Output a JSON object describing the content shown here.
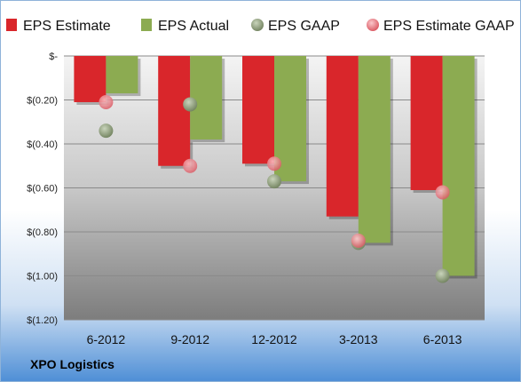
{
  "chart_data": {
    "type": "bar",
    "categories": [
      "6-2012",
      "9-2012",
      "12-2012",
      "3-2013",
      "6-2013"
    ],
    "series": [
      {
        "name": "EPS Estimate",
        "kind": "bar",
        "color": "#d9262b",
        "values": [
          -0.21,
          -0.5,
          -0.49,
          -0.73,
          -0.61
        ]
      },
      {
        "name": "EPS Actual",
        "kind": "bar",
        "color": "#8cab51",
        "values": [
          -0.17,
          -0.38,
          -0.57,
          -0.85,
          -1.0
        ]
      },
      {
        "name": "EPS GAAP",
        "kind": "point",
        "color": "#7d8f68",
        "values": [
          -0.34,
          -0.22,
          -0.57,
          -0.85,
          -1.0
        ]
      },
      {
        "name": "EPS Estimate GAAP",
        "kind": "point",
        "color": "#e8717a",
        "values": [
          -0.21,
          -0.5,
          -0.49,
          -0.84,
          -0.62
        ]
      }
    ],
    "yticks": [
      "$-",
      "$(0.20)",
      "$(0.40)",
      "$(0.60)",
      "$(0.80)",
      "$(1.00)",
      "$(1.20)"
    ],
    "ylim": [
      -1.2,
      0
    ],
    "grid": true,
    "legend_position": "top"
  },
  "footer": {
    "company": "XPO Logistics"
  }
}
